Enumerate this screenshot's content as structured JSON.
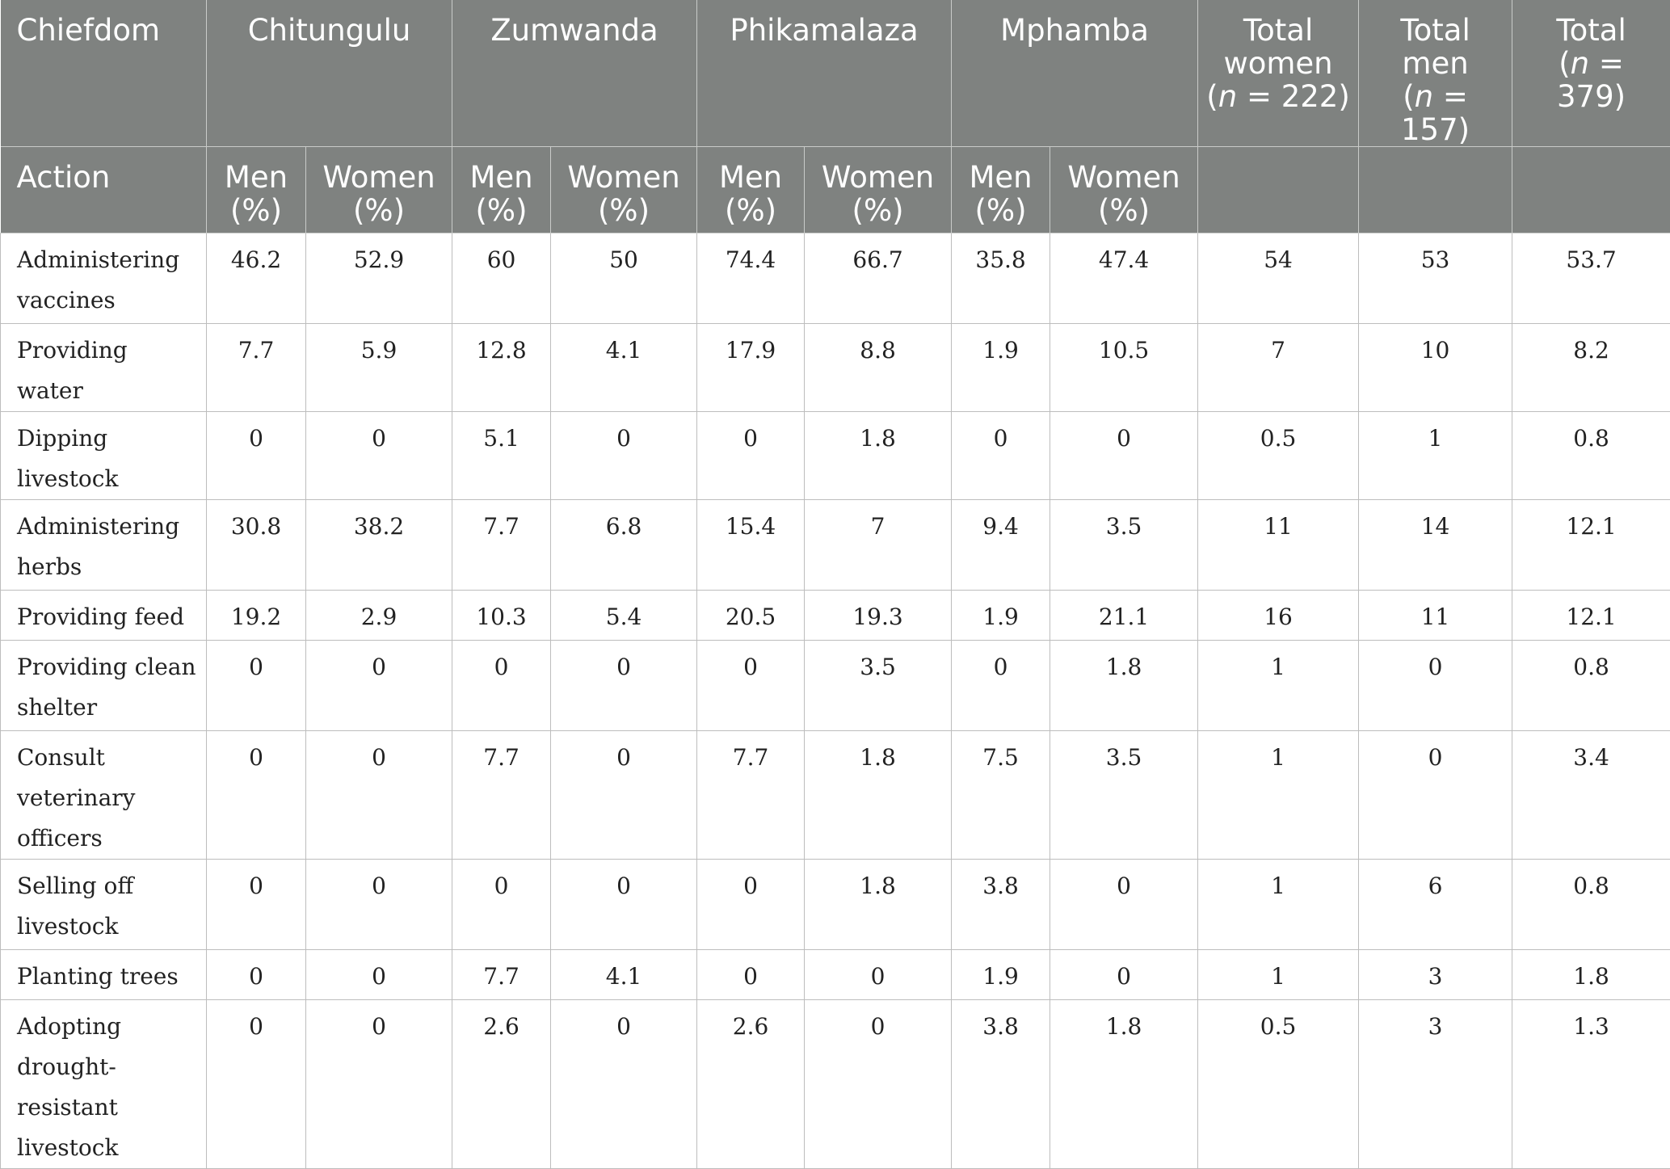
{
  "header": {
    "row1": {
      "chiefdom_label": "Chiefdom",
      "chiefdoms": [
        "Chitungulu",
        "Zumwanda",
        "Phikamalaza",
        "Mphamba"
      ],
      "total_women": {
        "line1": "Total",
        "line2": "women",
        "n_prefix": "(",
        "n_var": "n",
        "n_value": " = 222)"
      },
      "total_men": {
        "line1": "Total",
        "line2": "men",
        "n_prefix": "(",
        "n_var": "n",
        "n_value": " = 157)"
      },
      "total": {
        "line1": "Total",
        "n_prefix": "(",
        "n_var": "n",
        "n_value": " = 379)"
      }
    },
    "row2": {
      "action_label": "Action",
      "men_label": "Men",
      "women_label": "Women",
      "percent_label": "(%)"
    }
  },
  "rows": [
    {
      "action": "Administering vaccines",
      "values": [
        "46.2",
        "52.9",
        "60",
        "50",
        "74.4",
        "66.7",
        "35.8",
        "47.4",
        "54",
        "53",
        "53.7"
      ]
    },
    {
      "action": "Providing water",
      "values": [
        "7.7",
        "5.9",
        "12.8",
        "4.1",
        "17.9",
        "8.8",
        "1.9",
        "10.5",
        "7",
        "10",
        "8.2"
      ]
    },
    {
      "action": "Dipping livestock",
      "values": [
        "0",
        "0",
        "5.1",
        "0",
        "0",
        "1.8",
        "0",
        "0",
        "0.5",
        "1",
        "0.8"
      ]
    },
    {
      "action": "Administering herbs",
      "values": [
        "30.8",
        "38.2",
        "7.7",
        "6.8",
        "15.4",
        "7",
        "9.4",
        "3.5",
        "11",
        "14",
        "12.1"
      ]
    },
    {
      "action": "Providing feed",
      "values": [
        "19.2",
        "2.9",
        "10.3",
        "5.4",
        "20.5",
        "19.3",
        "1.9",
        "21.1",
        "16",
        "11",
        "12.1"
      ]
    },
    {
      "action": "Providing clean shelter",
      "values": [
        "0",
        "0",
        "0",
        "0",
        "0",
        "3.5",
        "0",
        "1.8",
        "1",
        "0",
        "0.8"
      ]
    },
    {
      "action": "Consult veterinary officers",
      "values": [
        "0",
        "0",
        "7.7",
        "0",
        "7.7",
        "1.8",
        "7.5",
        "3.5",
        "1",
        "0",
        "3.4"
      ]
    },
    {
      "action": "Selling off livestock",
      "values": [
        "0",
        "0",
        "0",
        "0",
        "0",
        "1.8",
        "3.8",
        "0",
        "1",
        "6",
        "0.8"
      ]
    },
    {
      "action": "Planting trees",
      "values": [
        "0",
        "0",
        "7.7",
        "4.1",
        "0",
        "0",
        "1.9",
        "0",
        "1",
        "3",
        "1.8"
      ]
    },
    {
      "action": "Adopting drought-resistant livestock",
      "values": [
        "0",
        "0",
        "2.6",
        "0",
        "2.6",
        "0",
        "3.8",
        "1.8",
        "0.5",
        "3",
        "1.3"
      ]
    }
  ]
}
